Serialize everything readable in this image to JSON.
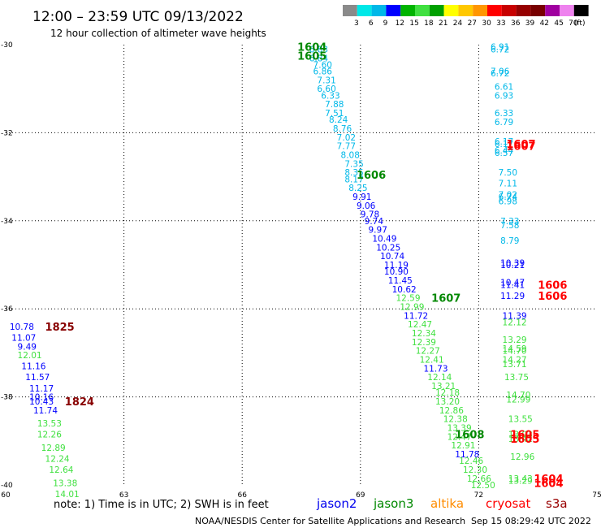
{
  "header": {
    "title": "12:00 – 23:59 UTC 09/13/2022",
    "subtitle": "12 hour collection of altimeter wave heights"
  },
  "footer": {
    "note": "note: 1) Time is in UTC; 2) SWH is in feet",
    "credit": "NOAA/NESDIS Center for Satellite Applications and Research",
    "timestamp": "Sep 15 08:29:42 UTC 2022"
  },
  "chart_data": {
    "type": "scatter",
    "xlim": [
      60,
      75
    ],
    "ylim": [
      -40,
      -30
    ],
    "x_ticks": [
      60,
      63,
      66,
      69,
      72,
      75
    ],
    "x_tick_labels": [
      "60",
      "63",
      "66",
      "69",
      "72",
      "75"
    ],
    "y_ticks": [
      -30,
      -32,
      -34,
      -36,
      -38,
      -40
    ],
    "y_tick_labels": [
      "-30",
      "-32",
      "-34",
      "-36",
      "-38",
      "-40"
    ],
    "grid": true,
    "color_scale": {
      "labels": [
        "3",
        "6",
        "9",
        "12",
        "15",
        "18",
        "21",
        "24",
        "27",
        "30",
        "33",
        "36",
        "39",
        "42",
        "45",
        "70",
        "(ft)"
      ],
      "colors": [
        "#8a8a8a",
        "#00e8e8",
        "#00b8e8",
        "#0000ff",
        "#00b400",
        "#40e040",
        "#00a000",
        "#ffff00",
        "#ffc800",
        "#ff9600",
        "#ff0000",
        "#c80000",
        "#960000",
        "#780000",
        "#a000a0",
        "#ee82ee",
        "#000000"
      ]
    },
    "satellites": [
      {
        "name": "jason2",
        "color": "#0000ee"
      },
      {
        "name": "jason3",
        "color": "#008800"
      },
      {
        "name": "altika",
        "color": "#ff8c00"
      },
      {
        "name": "cryosat",
        "color": "#ff0000"
      },
      {
        "name": "s3a",
        "color": "#990000"
      }
    ],
    "points": [
      {
        "x": 67.7,
        "y": -30.1,
        "v": "6.83",
        "c": "#00b8e8"
      },
      {
        "x": 67.7,
        "y": -30.3,
        "v": "6.84",
        "c": "#00b8e8"
      },
      {
        "x": 67.8,
        "y": -30.45,
        "v": "7.60",
        "c": "#00b8e8"
      },
      {
        "x": 67.8,
        "y": -30.6,
        "v": "6.86",
        "c": "#00b8e8"
      },
      {
        "x": 67.9,
        "y": -30.8,
        "v": "7.31",
        "c": "#00b8e8"
      },
      {
        "x": 67.9,
        "y": -31.0,
        "v": "6.60",
        "c": "#00b8e8"
      },
      {
        "x": 68.0,
        "y": -31.15,
        "v": "6.33",
        "c": "#00b8e8"
      },
      {
        "x": 68.1,
        "y": -31.35,
        "v": "7.88",
        "c": "#00b8e8"
      },
      {
        "x": 68.1,
        "y": -31.55,
        "v": "7.51",
        "c": "#00b8e8"
      },
      {
        "x": 68.2,
        "y": -31.7,
        "v": "8.24",
        "c": "#00b8e8"
      },
      {
        "x": 68.3,
        "y": -31.9,
        "v": "8.76",
        "c": "#00b8e8"
      },
      {
        "x": 68.4,
        "y": -32.1,
        "v": "7.02",
        "c": "#00b8e8"
      },
      {
        "x": 68.4,
        "y": -32.3,
        "v": "7.77",
        "c": "#00b8e8"
      },
      {
        "x": 68.5,
        "y": -32.5,
        "v": "8.08",
        "c": "#00b8e8"
      },
      {
        "x": 68.6,
        "y": -32.7,
        "v": "7.35",
        "c": "#00b8e8"
      },
      {
        "x": 68.6,
        "y": -32.9,
        "v": "8.35",
        "c": "#00b8e8"
      },
      {
        "x": 68.6,
        "y": -33.05,
        "v": "8.17",
        "c": "#00b8e8"
      },
      {
        "x": 68.7,
        "y": -33.25,
        "v": "8.25",
        "c": "#00b8e8"
      },
      {
        "x": 68.8,
        "y": -33.45,
        "v": "9.91",
        "c": "#0000ff"
      },
      {
        "x": 68.9,
        "y": -33.65,
        "v": "9.06",
        "c": "#0000ff"
      },
      {
        "x": 69.0,
        "y": -33.85,
        "v": "9.78",
        "c": "#0000ff"
      },
      {
        "x": 69.1,
        "y": -34.0,
        "v": "9.74",
        "c": "#0000ff"
      },
      {
        "x": 69.2,
        "y": -34.2,
        "v": "9.97",
        "c": "#0000ff"
      },
      {
        "x": 69.3,
        "y": -34.4,
        "v": "10.49",
        "c": "#0000ff"
      },
      {
        "x": 69.4,
        "y": -34.6,
        "v": "10.25",
        "c": "#0000ff"
      },
      {
        "x": 69.5,
        "y": -34.8,
        "v": "10.74",
        "c": "#0000ff"
      },
      {
        "x": 69.6,
        "y": -35.0,
        "v": "11.19",
        "c": "#0000ff"
      },
      {
        "x": 69.6,
        "y": -35.15,
        "v": "10.90",
        "c": "#0000ff"
      },
      {
        "x": 69.7,
        "y": -35.35,
        "v": "11.45",
        "c": "#0000ff"
      },
      {
        "x": 69.8,
        "y": -35.55,
        "v": "10.62",
        "c": "#0000ff"
      },
      {
        "x": 69.9,
        "y": -35.75,
        "v": "12.59",
        "c": "#40e040"
      },
      {
        "x": 70.0,
        "y": -35.95,
        "v": "12.99",
        "c": "#40e040"
      },
      {
        "x": 70.1,
        "y": -36.15,
        "v": "11.72",
        "c": "#0000ff"
      },
      {
        "x": 70.2,
        "y": -36.35,
        "v": "12.47",
        "c": "#40e040"
      },
      {
        "x": 70.3,
        "y": -36.55,
        "v": "12.34",
        "c": "#40e040"
      },
      {
        "x": 70.3,
        "y": -36.75,
        "v": "12.39",
        "c": "#40e040"
      },
      {
        "x": 70.4,
        "y": -36.95,
        "v": "12.27",
        "c": "#40e040"
      },
      {
        "x": 70.5,
        "y": -37.15,
        "v": "12.41",
        "c": "#40e040"
      },
      {
        "x": 70.6,
        "y": -37.35,
        "v": "11.73",
        "c": "#0000ff"
      },
      {
        "x": 70.7,
        "y": -37.55,
        "v": "12.14",
        "c": "#40e040"
      },
      {
        "x": 70.8,
        "y": -37.75,
        "v": "13.21",
        "c": "#40e040"
      },
      {
        "x": 70.9,
        "y": -37.9,
        "v": "12.18",
        "c": "#40e040"
      },
      {
        "x": 70.9,
        "y": -38.1,
        "v": "13.20",
        "c": "#40e040"
      },
      {
        "x": 71.0,
        "y": -38.3,
        "v": "12.86",
        "c": "#40e040"
      },
      {
        "x": 71.1,
        "y": -38.5,
        "v": "12.38",
        "c": "#40e040"
      },
      {
        "x": 71.2,
        "y": -38.7,
        "v": "13.39",
        "c": "#40e040"
      },
      {
        "x": 71.2,
        "y": -38.9,
        "v": "12.47",
        "c": "#40e040"
      },
      {
        "x": 71.3,
        "y": -39.1,
        "v": "12.91",
        "c": "#40e040"
      },
      {
        "x": 71.4,
        "y": -39.3,
        "v": "11.78",
        "c": "#0000ff"
      },
      {
        "x": 71.5,
        "y": -39.45,
        "v": "12.46",
        "c": "#40e040"
      },
      {
        "x": 71.6,
        "y": -39.65,
        "v": "12.30",
        "c": "#40e040"
      },
      {
        "x": 71.7,
        "y": -39.85,
        "v": "12.66",
        "c": "#40e040"
      },
      {
        "x": 71.8,
        "y": -40.0,
        "v": "12.50",
        "c": "#40e040"
      },
      {
        "x": 72.3,
        "y": -30.05,
        "v": "6.91",
        "c": "#00b8e8"
      },
      {
        "x": 72.3,
        "y": -30.1,
        "v": "6.72",
        "c": "#00b8e8"
      },
      {
        "x": 72.3,
        "y": -30.6,
        "v": "7.06",
        "c": "#00b8e8"
      },
      {
        "x": 72.3,
        "y": -30.65,
        "v": "6.72",
        "c": "#00b8e8"
      },
      {
        "x": 72.4,
        "y": -30.95,
        "v": "6.61",
        "c": "#00b8e8"
      },
      {
        "x": 72.4,
        "y": -31.15,
        "v": "6.93",
        "c": "#00b8e8"
      },
      {
        "x": 72.4,
        "y": -31.55,
        "v": "6.33",
        "c": "#00b8e8"
      },
      {
        "x": 72.4,
        "y": -31.75,
        "v": "6.79",
        "c": "#00b8e8"
      },
      {
        "x": 72.4,
        "y": -32.2,
        "v": "6.17",
        "c": "#00b8e8"
      },
      {
        "x": 72.4,
        "y": -32.25,
        "v": "6.17",
        "c": "#00b8e8"
      },
      {
        "x": 72.4,
        "y": -32.4,
        "v": "6.44",
        "c": "#00b8e8"
      },
      {
        "x": 72.4,
        "y": -32.45,
        "v": "6.57",
        "c": "#00b8e8"
      },
      {
        "x": 72.5,
        "y": -32.9,
        "v": "7.50",
        "c": "#00b8e8"
      },
      {
        "x": 72.5,
        "y": -33.15,
        "v": "7.11",
        "c": "#00b8e8"
      },
      {
        "x": 72.5,
        "y": -33.4,
        "v": "7.02",
        "c": "#00b8e8"
      },
      {
        "x": 72.5,
        "y": -33.45,
        "v": "6.74",
        "c": "#00b8e8"
      },
      {
        "x": 72.5,
        "y": -33.55,
        "v": "6.98",
        "c": "#00b8e8"
      },
      {
        "x": 72.55,
        "y": -34.0,
        "v": "7.33",
        "c": "#00b8e8"
      },
      {
        "x": 72.55,
        "y": -34.1,
        "v": "7.58",
        "c": "#00b8e8"
      },
      {
        "x": 72.55,
        "y": -34.45,
        "v": "8.79",
        "c": "#00b8e8"
      },
      {
        "x": 72.55,
        "y": -34.95,
        "v": "10.39",
        "c": "#0000ff"
      },
      {
        "x": 72.55,
        "y": -35.0,
        "v": "10.21",
        "c": "#0000ff"
      },
      {
        "x": 72.55,
        "y": -35.4,
        "v": "10.47",
        "c": "#0000ff"
      },
      {
        "x": 72.55,
        "y": -35.45,
        "v": "11.41",
        "c": "#0000ff"
      },
      {
        "x": 72.55,
        "y": -35.7,
        "v": "11.29",
        "c": "#0000ff"
      },
      {
        "x": 72.6,
        "y": -36.15,
        "v": "11.39",
        "c": "#0000ff"
      },
      {
        "x": 72.6,
        "y": -36.3,
        "v": "12.12",
        "c": "#40e040"
      },
      {
        "x": 72.6,
        "y": -36.7,
        "v": "13.29",
        "c": "#40e040"
      },
      {
        "x": 72.6,
        "y": -36.9,
        "v": "14.59",
        "c": "#40e040"
      },
      {
        "x": 72.6,
        "y": -36.95,
        "v": "14.70",
        "c": "#40e040"
      },
      {
        "x": 72.6,
        "y": -37.15,
        "v": "14.27",
        "c": "#40e040"
      },
      {
        "x": 72.6,
        "y": -37.25,
        "v": "13.71",
        "c": "#40e040"
      },
      {
        "x": 72.65,
        "y": -37.55,
        "v": "13.75",
        "c": "#40e040"
      },
      {
        "x": 72.7,
        "y": -37.95,
        "v": "14.70",
        "c": "#40e040"
      },
      {
        "x": 72.7,
        "y": -38.05,
        "v": "12.99",
        "c": "#40e040"
      },
      {
        "x": 72.75,
        "y": -38.5,
        "v": "13.55",
        "c": "#40e040"
      },
      {
        "x": 72.75,
        "y": -38.85,
        "v": "13.93",
        "c": "#40e040"
      },
      {
        "x": 72.75,
        "y": -38.95,
        "v": "13.42",
        "c": "#40e040"
      },
      {
        "x": 72.8,
        "y": -39.35,
        "v": "12.96",
        "c": "#40e040"
      },
      {
        "x": 72.75,
        "y": -39.85,
        "v": "13.43",
        "c": "#40e040"
      },
      {
        "x": 72.75,
        "y": -39.9,
        "v": "13.29",
        "c": "#40e040"
      },
      {
        "x": 60.1,
        "y": -36.4,
        "v": "10.78",
        "c": "#0000ff"
      },
      {
        "x": 60.15,
        "y": -36.65,
        "v": "11.07",
        "c": "#0000ff"
      },
      {
        "x": 60.3,
        "y": -36.85,
        "v": "9.49",
        "c": "#0000ff"
      },
      {
        "x": 60.3,
        "y": -37.05,
        "v": "12.01",
        "c": "#40e040"
      },
      {
        "x": 60.4,
        "y": -37.3,
        "v": "11.16",
        "c": "#0000ff"
      },
      {
        "x": 60.5,
        "y": -37.55,
        "v": "11.57",
        "c": "#0000ff"
      },
      {
        "x": 60.6,
        "y": -37.8,
        "v": "11.17",
        "c": "#0000ff"
      },
      {
        "x": 60.6,
        "y": -38.0,
        "v": "10.16",
        "c": "#0000ff"
      },
      {
        "x": 60.6,
        "y": -38.1,
        "v": "10.43",
        "c": "#0000ff"
      },
      {
        "x": 60.7,
        "y": -38.3,
        "v": "11.74",
        "c": "#0000ff"
      },
      {
        "x": 60.8,
        "y": -38.6,
        "v": "13.53",
        "c": "#40e040"
      },
      {
        "x": 60.8,
        "y": -38.85,
        "v": "12.26",
        "c": "#40e040"
      },
      {
        "x": 60.9,
        "y": -39.15,
        "v": "12.89",
        "c": "#40e040"
      },
      {
        "x": 61.0,
        "y": -39.4,
        "v": "12.24",
        "c": "#40e040"
      },
      {
        "x": 61.1,
        "y": -39.65,
        "v": "12.64",
        "c": "#40e040"
      },
      {
        "x": 61.2,
        "y": -39.95,
        "v": "13.38",
        "c": "#40e040"
      },
      {
        "x": 61.25,
        "y": -40.2,
        "v": "14.01",
        "c": "#40e040"
      }
    ],
    "labels": [
      {
        "x": 67.4,
        "y": -30.05,
        "t": "1604",
        "c": "#008800"
      },
      {
        "x": 67.4,
        "y": -30.25,
        "t": "1605",
        "c": "#008800"
      },
      {
        "x": 68.9,
        "y": -32.95,
        "t": "1606",
        "c": "#008800"
      },
      {
        "x": 70.8,
        "y": -35.75,
        "t": "1607",
        "c": "#008800"
      },
      {
        "x": 72.7,
        "y": -32.25,
        "t": "1607",
        "c": "#ff0000"
      },
      {
        "x": 72.7,
        "y": -32.3,
        "t": "1607",
        "c": "#ff0000"
      },
      {
        "x": 73.5,
        "y": -35.45,
        "t": "1606",
        "c": "#ff0000"
      },
      {
        "x": 73.5,
        "y": -35.7,
        "t": "1606",
        "c": "#ff0000"
      },
      {
        "x": 72.8,
        "y": -38.85,
        "t": "1605",
        "c": "#ff0000"
      },
      {
        "x": 72.8,
        "y": -38.95,
        "t": "1605",
        "c": "#ff0000"
      },
      {
        "x": 71.4,
        "y": -38.85,
        "t": "1608",
        "c": "#008800"
      },
      {
        "x": 73.4,
        "y": -39.85,
        "t": "1604",
        "c": "#ff0000"
      },
      {
        "x": 73.4,
        "y": -39.95,
        "t": "1604",
        "c": "#ff0000"
      },
      {
        "x": 61.0,
        "y": -36.4,
        "t": "1825",
        "c": "#880000"
      },
      {
        "x": 61.5,
        "y": -38.1,
        "t": "1824",
        "c": "#880000"
      }
    ]
  }
}
